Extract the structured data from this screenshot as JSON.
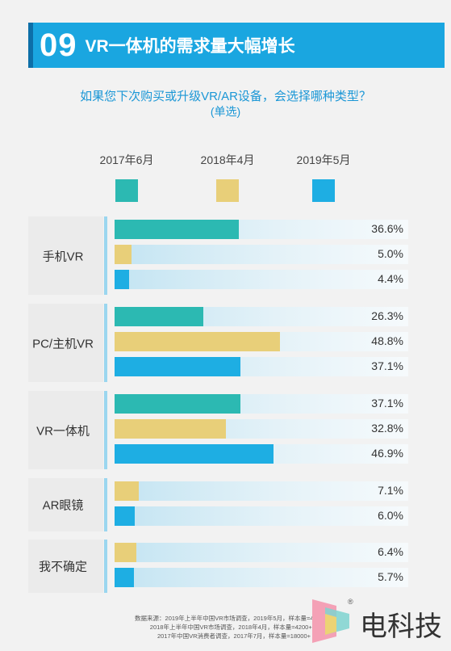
{
  "header": {
    "number": "09",
    "title": "VR一体机的需求量大幅增长"
  },
  "question": "如果您下次购买或升级VR/AR设备，会选择哪种类型？",
  "question_note": "(单选)",
  "colors": {
    "2017年6月": "#2cb9b2",
    "2018年4月": "#e8cf79",
    "2019年5月": "#1eaee3",
    "header": "#1aa6e0"
  },
  "chart_data": {
    "type": "bar",
    "orientation": "horizontal",
    "categories": [
      "手机VR",
      "PC/主机VR",
      "VR一体机",
      "AR眼镜",
      "我不确定"
    ],
    "series": [
      {
        "name": "2017年6月",
        "values": [
          36.6,
          26.3,
          37.1,
          null,
          null
        ]
      },
      {
        "name": "2018年4月",
        "values": [
          5.0,
          48.8,
          32.8,
          7.1,
          6.4
        ]
      },
      {
        "name": "2019年5月",
        "values": [
          4.4,
          37.1,
          46.9,
          6.0,
          5.7
        ]
      }
    ],
    "value_labels": [
      [
        "36.6%",
        "5.0%",
        "4.4%"
      ],
      [
        "26.3%",
        "48.8%",
        "37.1%"
      ],
      [
        "37.1%",
        "32.8%",
        "46.9%"
      ],
      [
        "7.1%",
        "6.0%"
      ],
      [
        "6.4%",
        "5.7%"
      ]
    ],
    "legend_position": "top",
    "xlim": [
      0,
      100
    ]
  },
  "source_lines": [
    "数据来源：2019年上半年中国VR市场调查，2019年5月，样本量=4200+；",
    "2018年上半年中国VR市场调查，2018年4月，样本量=4200+；",
    "2017年中国VR消费者调查，2017年7月，样本量=18000+"
  ],
  "logo": {
    "text": "电科技",
    "reg": "®"
  }
}
